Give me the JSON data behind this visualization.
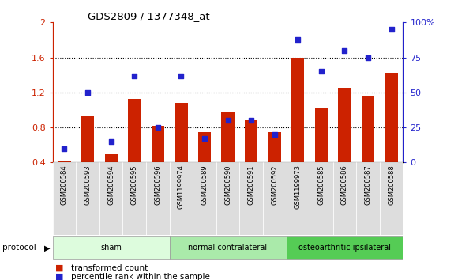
{
  "title": "GDS2809 / 1377348_at",
  "samples": [
    "GSM200584",
    "GSM200593",
    "GSM200594",
    "GSM200595",
    "GSM200596",
    "GSM1199974",
    "GSM200589",
    "GSM200590",
    "GSM200591",
    "GSM200592",
    "GSM1199973",
    "GSM200585",
    "GSM200586",
    "GSM200587",
    "GSM200588"
  ],
  "bar_values": [
    0.41,
    0.93,
    0.49,
    1.13,
    0.82,
    1.08,
    0.75,
    0.97,
    0.88,
    0.75,
    1.6,
    1.02,
    1.25,
    1.15,
    1.42
  ],
  "scatter_values": [
    10,
    50,
    15,
    62,
    25,
    62,
    17,
    30,
    30,
    20,
    88,
    65,
    80,
    75,
    95
  ],
  "bar_color": "#cc2200",
  "scatter_color": "#2222cc",
  "ylim_left": [
    0.4,
    2.0
  ],
  "ylim_right": [
    0,
    100
  ],
  "yticks_left": [
    0.4,
    0.8,
    1.2,
    1.6,
    2.0
  ],
  "ytick_labels_left": [
    "0.4",
    "0.8",
    "1.2",
    "1.6",
    "2"
  ],
  "yticks_right": [
    0,
    25,
    50,
    75,
    100
  ],
  "ytick_labels_right": [
    "0",
    "25",
    "50",
    "75",
    "100%"
  ],
  "gridlines": [
    0.8,
    1.2,
    1.6
  ],
  "groups": [
    {
      "label": "sham",
      "start": 0,
      "end": 5,
      "color": "#ddfcdd"
    },
    {
      "label": "normal contralateral",
      "start": 5,
      "end": 10,
      "color": "#aaeaaa"
    },
    {
      "label": "osteoarthritic ipsilateral",
      "start": 10,
      "end": 15,
      "color": "#55cc55"
    }
  ],
  "protocol_label": "protocol",
  "legend_bar_label": "transformed count",
  "legend_scatter_label": "percentile rank within the sample",
  "background_color": "#ffffff",
  "plot_bg_color": "#ffffff",
  "xtick_bg_color": "#dddddd",
  "left_axis_color": "#cc2200",
  "right_axis_color": "#2222cc"
}
